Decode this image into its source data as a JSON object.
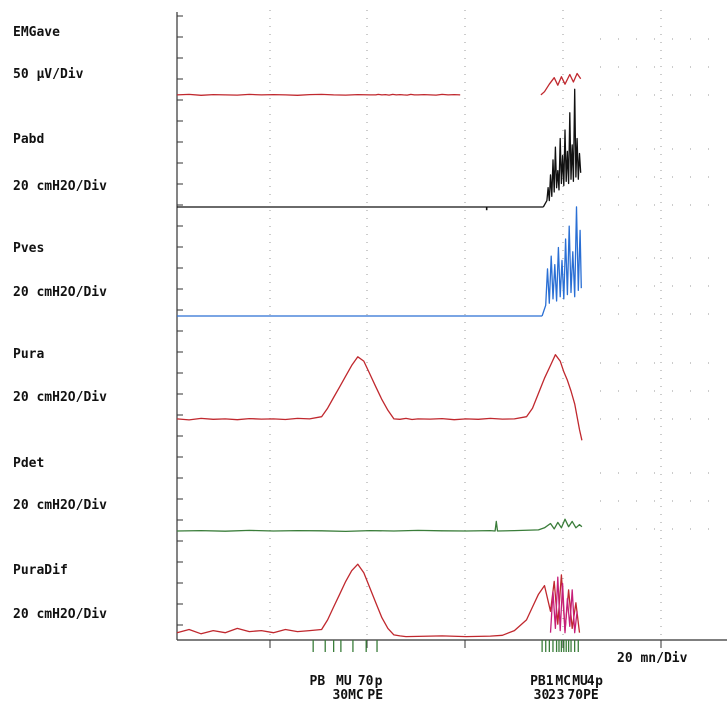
{
  "chart_data": {
    "type": "line",
    "x_unit_label": "20 mn/Div",
    "grid": "dotted",
    "channels": [
      {
        "name": "EMGave",
        "scale": "50 µV/Div",
        "color": "#c0282e",
        "segments": [
          {
            "x": [
              0,
              1,
              2,
              3,
              4,
              5,
              6,
              7,
              8,
              9,
              10,
              11,
              12,
              13,
              14,
              15,
              16,
              16.5,
              16.7,
              17.0,
              17.3,
              17.6,
              17.9,
              18.2,
              18.5,
              18.8,
              19.1,
              19.4,
              19.7,
              20.0,
              20.5,
              21.0,
              21.5,
              22.0,
              22.5,
              23.0,
              23.5
            ],
            "y": [
              0.1,
              0.12,
              0.08,
              0.11,
              0.1,
              0.09,
              0.12,
              0.1,
              0.11,
              0.1,
              0.08,
              0.11,
              0.12,
              0.1,
              0.09,
              0.11,
              0.1,
              0.1,
              0.12,
              0.1,
              0.11,
              0.09,
              0.12,
              0.1,
              0.11,
              0.1,
              0.09,
              0.12,
              0.1,
              0.1,
              0.11,
              0.1,
              0.09,
              0.12,
              0.1,
              0.11,
              0.1
            ]
          },
          {
            "x": [
              30.2,
              30.5,
              30.9,
              31.3,
              31.6,
              31.9,
              32.2,
              32.6,
              32.9,
              33.2,
              33.5
            ],
            "y": [
              0.1,
              0.25,
              0.6,
              0.9,
              0.55,
              0.95,
              0.6,
              1.05,
              0.7,
              1.1,
              0.85
            ]
          }
        ]
      },
      {
        "name": "Pabd",
        "scale": "20 cmH2O/Div",
        "color": "#111111",
        "segments": [
          {
            "x": [
              0,
              30.4
            ],
            "y": [
              0,
              0
            ]
          },
          {
            "x": [
              30.4,
              30.7,
              30.8,
              30.9,
              31.0,
              31.1,
              31.2,
              31.3,
              31.4,
              31.5,
              31.6,
              31.7,
              31.8,
              31.9,
              32.0,
              32.1,
              32.2,
              32.3,
              32.4,
              32.5,
              32.6,
              32.7,
              32.8,
              32.9,
              33.0,
              33.1,
              33.2,
              33.3,
              33.4,
              33.5
            ],
            "y": [
              0,
              0.3,
              0.9,
              0.3,
              1.5,
              0.5,
              2.2,
              0.7,
              2.8,
              0.9,
              1.7,
              0.8,
              3.2,
              1.1,
              2.4,
              1.0,
              3.6,
              1.2,
              2.6,
              1.1,
              4.4,
              1.3,
              2.9,
              1.2,
              5.5,
              1.4,
              3.2,
              1.3,
              2.5,
              1.6
            ]
          }
        ],
        "spikes": [
          {
            "x": 25.7,
            "y": -0.15
          }
        ]
      },
      {
        "name": "Pves",
        "scale": "20 cmH2O/Div",
        "color": "#2a6fd4",
        "segments": [
          {
            "x": [
              0,
              30.3
            ],
            "y": [
              0,
              0
            ]
          },
          {
            "x": [
              30.3,
              30.6,
              30.75,
              30.9,
              31.05,
              31.2,
              31.35,
              31.5,
              31.65,
              31.8,
              31.95,
              32.1,
              32.25,
              32.4,
              32.55,
              32.7,
              32.85,
              33.0,
              33.15,
              33.3,
              33.45,
              33.55
            ],
            "y": [
              0,
              0.5,
              2.2,
              0.6,
              2.8,
              0.8,
              2.4,
              0.7,
              3.2,
              0.9,
              2.6,
              0.8,
              3.6,
              1.0,
              4.2,
              1.1,
              3.0,
              0.9,
              5.1,
              1.2,
              4.0,
              1.3
            ]
          }
        ]
      },
      {
        "name": "Pura",
        "scale": "20 cmH2O/Div",
        "color": "#c0282e",
        "segments": [
          {
            "x": [
              0,
              1,
              2,
              3,
              4,
              5,
              6,
              7,
              8,
              9,
              10,
              11,
              12,
              12.5,
              13,
              13.5,
              14,
              14.5,
              15,
              15.5,
              16,
              16.5,
              17,
              17.5,
              18,
              18.5,
              19,
              19.5,
              20,
              21,
              22,
              23,
              24,
              25,
              26,
              27,
              28,
              29,
              29.5,
              30,
              30.5,
              31,
              31.4,
              31.8,
              32.1,
              32.4,
              32.7,
              33.0,
              33.2,
              33.4,
              33.6
            ],
            "y": [
              0.1,
              0.05,
              0.12,
              0.08,
              0.1,
              0.06,
              0.11,
              0.09,
              0.1,
              0.07,
              0.12,
              0.1,
              0.2,
              0.6,
              1.1,
              1.6,
              2.1,
              2.6,
              3.0,
              2.8,
              2.2,
              1.6,
              1.0,
              0.5,
              0.1,
              0.08,
              0.12,
              0.07,
              0.1,
              0.09,
              0.11,
              0.06,
              0.1,
              0.08,
              0.12,
              0.09,
              0.1,
              0.2,
              0.6,
              1.3,
              2.0,
              2.6,
              3.1,
              2.8,
              2.3,
              1.9,
              1.4,
              0.8,
              0.2,
              -0.4,
              -0.9
            ]
          }
        ]
      },
      {
        "name": "Pdet",
        "scale": "20 cmH2O/Div",
        "color": "#3a7d3a",
        "segments": [
          {
            "x": [
              0,
              2,
              4,
              6,
              8,
              10,
              12,
              14,
              16,
              18,
              20,
              22,
              24,
              26,
              26.4,
              26.5,
              26.6,
              28,
              30,
              30.5,
              31,
              31.3,
              31.6,
              31.9,
              32.2,
              32.5,
              32.8,
              33.1,
              33.4,
              33.6
            ],
            "y": [
              0,
              0.02,
              -0.01,
              0.03,
              0,
              0.02,
              0.01,
              -0.02,
              0.02,
              0,
              0.03,
              0.01,
              0,
              0.02,
              0,
              0.45,
              0,
              0.02,
              0.05,
              0.15,
              0.35,
              0.1,
              0.4,
              0.15,
              0.55,
              0.2,
              0.45,
              0.15,
              0.3,
              0.2
            ]
          }
        ]
      },
      {
        "name": "PuraDif",
        "scale": "20 cmH2O/Div",
        "color": "#c0282e",
        "segments": [
          {
            "x": [
              0,
              1,
              2,
              3,
              4,
              5,
              6,
              7,
              8,
              9,
              10,
              11,
              12,
              12.5,
              13,
              13.5,
              14,
              14.5,
              15,
              15.5,
              16,
              16.5,
              17,
              17.5,
              18,
              18.5,
              19,
              20,
              22,
              24,
              26,
              27,
              28,
              29,
              29.5,
              30,
              30.5,
              31,
              31.3,
              31.6,
              31.9,
              32.2,
              32.5,
              32.8,
              33.1,
              33.4
            ],
            "y": [
              0.2,
              0.35,
              0.15,
              0.3,
              0.2,
              0.4,
              0.25,
              0.3,
              0.2,
              0.35,
              0.25,
              0.3,
              0.35,
              0.8,
              1.4,
              2.0,
              2.6,
              3.1,
              3.4,
              3.0,
              2.3,
              1.6,
              0.9,
              0.4,
              0.1,
              0.05,
              0.02,
              0.03,
              0.05,
              0.02,
              0.04,
              0.08,
              0.3,
              0.8,
              1.4,
              2.0,
              2.4,
              1.2,
              2.6,
              0.6,
              2.9,
              0.3,
              2.2,
              0.4,
              1.6,
              0.2
            ]
          },
          {
            "x": [
              31.0,
              31.2,
              31.4,
              31.6,
              31.8,
              32.0,
              32.2,
              32.4,
              32.6,
              32.8,
              33.0,
              33.2
            ],
            "y": [
              0.2,
              2.1,
              0.4,
              2.8,
              0.3,
              2.5,
              0.2,
              1.8,
              0.5,
              2.2,
              0.2,
              1.2
            ],
            "color": "#c6207a"
          }
        ]
      }
    ],
    "event_ticks": [
      11.3,
      12.3,
      13.0,
      13.6,
      14.6,
      15.7,
      16.6,
      30.3,
      30.6,
      30.9,
      31.2,
      31.5,
      31.7,
      31.9,
      32.1,
      32.3,
      32.5,
      32.7,
      33.0,
      33.3
    ],
    "event_labels": [
      {
        "text": "PB",
        "x": 11.0,
        "row": 1
      },
      {
        "text": "MU",
        "x": 13.2,
        "row": 1
      },
      {
        "text": "70",
        "x": 15.0,
        "row": 1
      },
      {
        "text": "p",
        "x": 16.4,
        "row": 1
      },
      {
        "text": "30",
        "x": 12.9,
        "row": 2
      },
      {
        "text": "MC",
        "x": 14.2,
        "row": 2
      },
      {
        "text": "PE",
        "x": 15.8,
        "row": 2
      },
      {
        "text": "PB",
        "x": 29.3,
        "row": 1
      },
      {
        "text": "1",
        "x": 30.6,
        "row": 1
      },
      {
        "text": "MC",
        "x": 31.4,
        "row": 1
      },
      {
        "text": "MU",
        "x": 32.8,
        "row": 1
      },
      {
        "text": "4",
        "x": 34.0,
        "row": 1
      },
      {
        "text": "p",
        "x": 34.7,
        "row": 1
      },
      {
        "text": "30",
        "x": 29.6,
        "row": 2
      },
      {
        "text": "2",
        "x": 30.8,
        "row": 2
      },
      {
        "text": "3",
        "x": 31.5,
        "row": 2
      },
      {
        "text": "70",
        "x": 32.4,
        "row": 2
      },
      {
        "text": "PE",
        "x": 33.7,
        "row": 2
      }
    ]
  }
}
